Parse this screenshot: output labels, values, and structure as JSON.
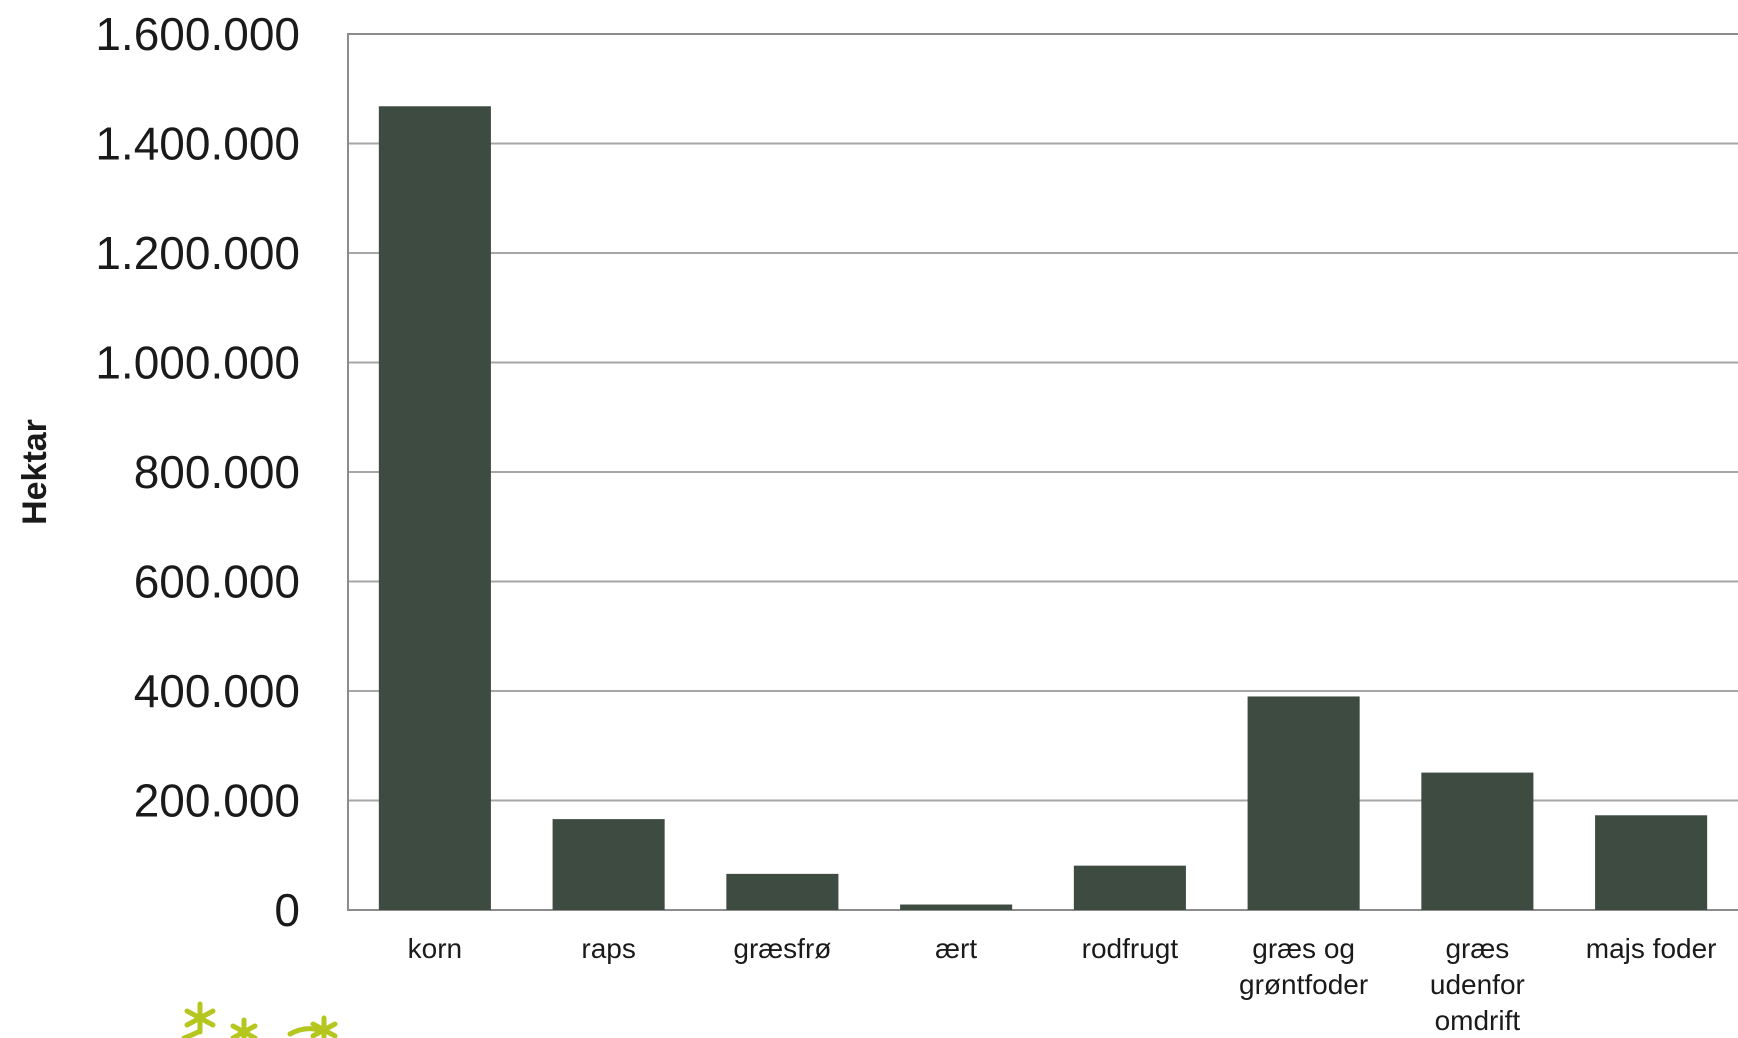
{
  "chart_data": {
    "type": "bar",
    "title": "",
    "xlabel": "",
    "ylabel": "Hektar",
    "ylim": [
      0,
      1600000
    ],
    "yticks": [
      0,
      200000,
      400000,
      600000,
      800000,
      1000000,
      1200000,
      1400000,
      1600000
    ],
    "ytick_labels": [
      "0",
      "200.000",
      "400.000",
      "600.000",
      "800.000",
      "1.000.000",
      "1.200.000",
      "1.400.000",
      "1.600.000"
    ],
    "grid": true,
    "bar_color": "#3d4b40",
    "categories": [
      [
        "korn"
      ],
      [
        "raps"
      ],
      [
        "græsfrø"
      ],
      [
        "ært"
      ],
      [
        "rodfrugt"
      ],
      [
        "græs og",
        "grøntfoder"
      ],
      [
        "græs",
        "udenfor",
        "omdrift"
      ],
      [
        "majs foder"
      ]
    ],
    "values": [
      1468000,
      166000,
      66000,
      10000,
      81000,
      390000,
      251000,
      173000
    ]
  }
}
